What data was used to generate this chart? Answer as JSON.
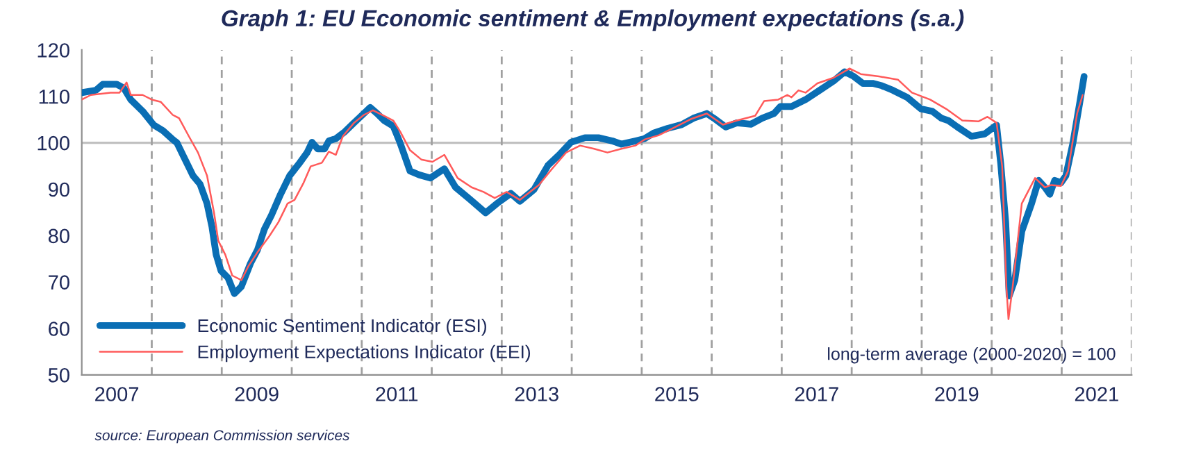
{
  "chart_data": {
    "type": "line",
    "title": "Graph 1: EU Economic sentiment & Employment expectations (s.a.)",
    "annotations": [
      "long-term average (2000-2020) = 100",
      "source: European Commission services"
    ],
    "xlim": [
      2007,
      2022
    ],
    "ylim": [
      50,
      120
    ],
    "xticks": [
      {
        "value": 2007.5,
        "label": "2007"
      },
      {
        "value": 2009.5,
        "label": "2009"
      },
      {
        "value": 2011.5,
        "label": "2011"
      },
      {
        "value": 2013.5,
        "label": "2013"
      },
      {
        "value": 2015.5,
        "label": "2015"
      },
      {
        "value": 2017.5,
        "label": "2017"
      },
      {
        "value": 2019.5,
        "label": "2019"
      },
      {
        "value": 2021.5,
        "label": "2021"
      }
    ],
    "yticks": [
      50,
      60,
      70,
      80,
      90,
      100,
      110,
      120
    ],
    "grid": false,
    "legend": "bottom left",
    "marker": "none",
    "line_style": "solid",
    "ref_lines": [
      {
        "axis": "y",
        "value": 100,
        "color": "#c0c0c0",
        "line_style": "solid"
      },
      {
        "axis": "x",
        "value": 2008,
        "label": null,
        "color": "#a0a0a0",
        "line_style": "dashed"
      },
      {
        "axis": "x",
        "value": 2009,
        "label": null,
        "color": "#a0a0a0",
        "line_style": "dashed"
      },
      {
        "axis": "x",
        "value": 2010,
        "label": null,
        "color": "#a0a0a0",
        "line_style": "dashed"
      },
      {
        "axis": "x",
        "value": 2011,
        "label": null,
        "color": "#a0a0a0",
        "line_style": "dashed"
      },
      {
        "axis": "x",
        "value": 2012,
        "label": null,
        "color": "#a0a0a0",
        "line_style": "dashed"
      },
      {
        "axis": "x",
        "value": 2013,
        "label": null,
        "color": "#a0a0a0",
        "line_style": "dashed"
      },
      {
        "axis": "x",
        "value": 2014,
        "label": null,
        "color": "#a0a0a0",
        "line_style": "dashed"
      },
      {
        "axis": "x",
        "value": 2015,
        "label": null,
        "color": "#a0a0a0",
        "line_style": "dashed"
      },
      {
        "axis": "x",
        "value": 2016,
        "label": null,
        "color": "#a0a0a0",
        "line_style": "dashed"
      },
      {
        "axis": "x",
        "value": 2017,
        "label": null,
        "color": "#a0a0a0",
        "line_style": "dashed"
      },
      {
        "axis": "x",
        "value": 2018,
        "label": null,
        "color": "#a0a0a0",
        "line_style": "dashed"
      },
      {
        "axis": "x",
        "value": 2019,
        "label": null,
        "color": "#a0a0a0",
        "line_style": "dashed"
      },
      {
        "axis": "x",
        "value": 2020,
        "label": null,
        "color": "#a0a0a0",
        "line_style": "dashed"
      },
      {
        "axis": "x",
        "value": 2021,
        "label": null,
        "color": "#a0a0a0",
        "line_style": "dashed"
      },
      {
        "axis": "x",
        "value": 2022,
        "label": null,
        "color": "#a0a0a0",
        "line_style": "dashed"
      }
    ],
    "series": [
      {
        "name": "Economic Sentiment Indicator (ESI)",
        "color": "#0a6eb4",
        "x": [
          2007.0,
          2007.2,
          2007.3,
          2007.5,
          2007.6,
          2007.7,
          2007.87,
          2008.03,
          2008.16,
          2008.3,
          2008.36,
          2008.46,
          2008.59,
          2008.69,
          2008.79,
          2008.86,
          2008.92,
          2008.99,
          2009.09,
          2009.18,
          2009.28,
          2009.41,
          2009.51,
          2009.61,
          2009.71,
          2009.84,
          2009.97,
          2010.1,
          2010.22,
          2010.29,
          2010.37,
          2010.47,
          2010.53,
          2010.63,
          2010.76,
          2010.89,
          2011.03,
          2011.12,
          2011.22,
          2011.32,
          2011.45,
          2011.55,
          2011.69,
          2011.82,
          2011.98,
          2012.18,
          2012.34,
          2012.54,
          2012.77,
          2012.93,
          2013.13,
          2013.26,
          2013.46,
          2013.66,
          2013.82,
          2013.99,
          2014.19,
          2014.38,
          2014.58,
          2014.71,
          2014.91,
          2015.04,
          2015.17,
          2015.37,
          2015.57,
          2015.74,
          2015.93,
          2016.03,
          2016.2,
          2016.36,
          2016.56,
          2016.72,
          2016.89,
          2016.98,
          2017.14,
          2017.34,
          2017.54,
          2017.74,
          2017.9,
          2018.03,
          2018.16,
          2018.3,
          2018.43,
          2018.59,
          2018.79,
          2018.99,
          2019.15,
          2019.28,
          2019.38,
          2019.51,
          2019.71,
          2019.9,
          2020.07,
          2020.13,
          2020.2,
          2020.25,
          2020.33,
          2020.43,
          2020.57,
          2020.67,
          2020.76,
          2020.83,
          2020.9,
          2020.99,
          2021.06,
          2021.16,
          2021.26,
          2021.32
        ],
        "values": [
          110.8,
          111.3,
          112.6,
          112.6,
          111.8,
          109.3,
          106.8,
          103.8,
          102.6,
          100.7,
          100.0,
          96.9,
          92.9,
          91.1,
          86.9,
          81.9,
          75.9,
          72.4,
          70.9,
          67.5,
          69.0,
          74.0,
          76.9,
          81.4,
          84.4,
          88.9,
          92.9,
          95.4,
          97.9,
          100.1,
          98.7,
          98.7,
          100.4,
          100.9,
          102.4,
          104.3,
          106.3,
          107.6,
          106.3,
          104.8,
          103.6,
          99.9,
          93.9,
          93.1,
          92.4,
          94.4,
          90.4,
          87.9,
          84.9,
          86.9,
          89.1,
          87.4,
          89.9,
          95.1,
          97.4,
          100.1,
          101.1,
          101.1,
          100.4,
          99.7,
          100.4,
          100.9,
          102.1,
          103.1,
          103.9,
          105.3,
          106.3,
          105.3,
          103.4,
          104.3,
          104.0,
          105.3,
          106.3,
          107.8,
          107.8,
          109.3,
          111.3,
          113.3,
          115.3,
          114.3,
          112.8,
          112.8,
          112.3,
          111.3,
          109.8,
          107.3,
          106.8,
          105.3,
          104.8,
          103.4,
          101.4,
          101.9,
          103.8,
          95.4,
          82.9,
          67.0,
          70.4,
          80.9,
          86.9,
          91.9,
          90.4,
          88.9,
          91.9,
          91.4,
          92.9,
          99.9,
          108.8,
          114.3
        ]
      },
      {
        "name": "Employment Expectations Indicator (EEI)",
        "color": "#ff5a5a",
        "x": [
          2007.0,
          2007.13,
          2007.41,
          2007.54,
          2007.64,
          2007.7,
          2007.87,
          2008.0,
          2008.13,
          2008.3,
          2008.39,
          2008.53,
          2008.66,
          2008.79,
          2008.89,
          2008.95,
          2009.05,
          2009.15,
          2009.28,
          2009.38,
          2009.51,
          2009.68,
          2009.81,
          2009.94,
          2010.04,
          2010.17,
          2010.27,
          2010.43,
          2010.53,
          2010.63,
          2010.73,
          2010.89,
          2011.03,
          2011.16,
          2011.32,
          2011.45,
          2011.55,
          2011.69,
          2011.85,
          2012.01,
          2012.18,
          2012.37,
          2012.57,
          2012.74,
          2012.9,
          2013.07,
          2013.26,
          2013.53,
          2013.72,
          2013.92,
          2014.12,
          2014.32,
          2014.51,
          2014.71,
          2014.91,
          2015.04,
          2015.24,
          2015.44,
          2015.7,
          2015.93,
          2016.16,
          2016.36,
          2016.62,
          2016.75,
          2016.95,
          2017.08,
          2017.14,
          2017.24,
          2017.34,
          2017.51,
          2017.74,
          2017.97,
          2018.13,
          2018.39,
          2018.66,
          2018.86,
          2019.12,
          2019.35,
          2019.58,
          2019.81,
          2019.94,
          2020.07,
          2020.15,
          2020.21,
          2020.24,
          2020.3,
          2020.43,
          2020.62,
          2020.76,
          2020.85,
          2020.99,
          2021.09,
          2021.22,
          2021.3
        ],
        "values": [
          109.3,
          110.3,
          110.8,
          110.8,
          113.0,
          110.3,
          110.3,
          109.3,
          108.8,
          106.0,
          105.3,
          101.4,
          97.9,
          92.9,
          84.9,
          78.9,
          75.9,
          71.4,
          70.4,
          73.4,
          76.4,
          79.9,
          82.9,
          86.9,
          87.7,
          91.4,
          94.9,
          95.7,
          98.1,
          97.4,
          101.4,
          104.3,
          106.0,
          107.0,
          105.8,
          104.8,
          102.4,
          98.4,
          96.4,
          95.9,
          97.4,
          92.4,
          90.4,
          89.4,
          88.1,
          89.4,
          87.7,
          90.9,
          94.4,
          97.9,
          99.4,
          98.7,
          97.9,
          98.7,
          99.4,
          100.7,
          101.6,
          103.1,
          105.1,
          106.3,
          103.9,
          104.8,
          105.8,
          109.0,
          109.3,
          110.3,
          109.8,
          111.3,
          110.8,
          112.8,
          114.0,
          116.0,
          114.8,
          114.3,
          113.6,
          110.8,
          109.3,
          107.3,
          104.8,
          104.6,
          105.6,
          104.3,
          94.9,
          69.0,
          62.0,
          69.0,
          86.9,
          92.4,
          90.4,
          90.9,
          90.7,
          93.9,
          106.3,
          110.3
        ]
      }
    ]
  }
}
